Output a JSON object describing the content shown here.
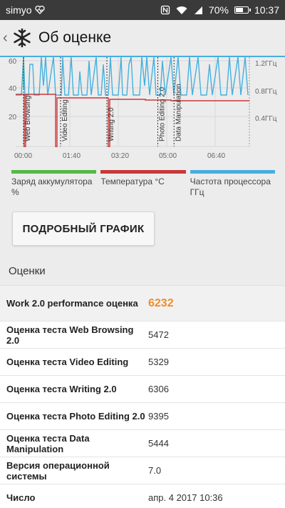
{
  "status": {
    "carrier": "simyo",
    "battery": "70%",
    "battery_level": 0.7,
    "time": "10:37",
    "icons": [
      "heart-pulse-icon",
      "nfc-icon",
      "wifi-icon",
      "signal-icon",
      "battery-icon"
    ]
  },
  "header": {
    "title": "Об оценке",
    "back_icon": "back-chevron-icon",
    "logo_icon": "snowflake-icon"
  },
  "chart_data": {
    "type": "line",
    "x_ticks": [
      "00:00",
      "01:40",
      "03:20",
      "05:00",
      "06:40"
    ],
    "y_left_ticks": [
      "60",
      "40",
      "20"
    ],
    "y_right_ticks": [
      "1.2ГГц",
      "0.8ГГц",
      "0.4ГГц"
    ],
    "markers": [
      {
        "label": "Web Browsing",
        "t": "00:00"
      },
      {
        "label": "Video Editing",
        "t": "01:20"
      },
      {
        "label": "Writing 2.0",
        "t": "03:00"
      },
      {
        "label": "Photo Editing 2.0",
        "t": "04:50"
      },
      {
        "label": "Data Manipulation",
        "t": "05:25"
      }
    ],
    "series": [
      {
        "name": "Заряд аккумулятора %",
        "color": "#57b847"
      },
      {
        "name": "Температура °C",
        "color": "#c9383a"
      },
      {
        "name": "Частота процессора ГГц",
        "color": "#45b0e0"
      }
    ]
  },
  "legend": [
    {
      "label": "Заряд аккумулятора %",
      "color": "#57b847"
    },
    {
      "label": "Температура °C",
      "color": "#c9383a"
    },
    {
      "label": "Частота процессора ГГц",
      "color": "#45b0e0"
    }
  ],
  "detail_button": "ПОДРОБНЫЙ ГРАФИК",
  "scores_title": "Оценки",
  "rows": [
    {
      "label": "Work 2.0 performance оценка",
      "value": "6232"
    },
    {
      "label": "Оценка теста Web Browsing 2.0",
      "value": "5472"
    },
    {
      "label": "Оценка теста Video Editing",
      "value": "5329"
    },
    {
      "label": "Оценка теста Writing 2.0",
      "value": "6306"
    },
    {
      "label": "Оценка теста Photo Editing 2.0",
      "value": "9395"
    },
    {
      "label": "Оценка теста Data Manipulation",
      "value": "5444"
    },
    {
      "label": "Версия операционной системы",
      "value": "7.0"
    },
    {
      "label": "Число",
      "value": "апр. 4 2017 10:36"
    }
  ]
}
